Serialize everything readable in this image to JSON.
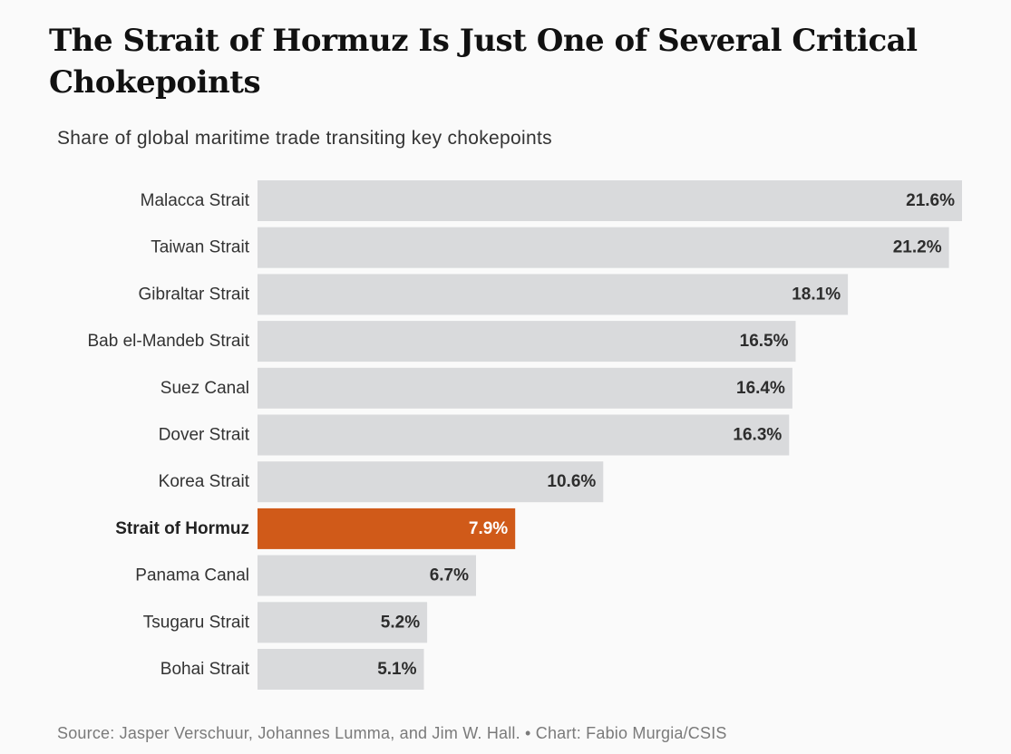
{
  "title": "The Strait of Hormuz Is Just One of Several Critical Chokepoints",
  "subtitle": "Share of global maritime trade transiting key chokepoints",
  "source": "Source: Jasper Verschuur, Johannes Lumma, and Jim W. Hall. • Chart: Fabio Murgia/CSIS",
  "colors": {
    "bar": "#d9dadc",
    "highlight": "#d05a19",
    "background": "#fafafa"
  },
  "chart_data": {
    "type": "bar",
    "orientation": "horizontal",
    "title": "The Strait of Hormuz Is Just One of Several Critical Chokepoints",
    "subtitle": "Share of global maritime trade transiting key chokepoints",
    "xlabel": "",
    "ylabel": "",
    "xlim": [
      0,
      21.6
    ],
    "grid": false,
    "legend": "none",
    "unit": "%",
    "highlight": "Strait of Hormuz",
    "categories": [
      "Malacca Strait",
      "Taiwan Strait",
      "Gibraltar Strait",
      "Bab el-Mandeb Strait",
      "Suez Canal",
      "Dover Strait",
      "Korea Strait",
      "Strait of Hormuz",
      "Panama Canal",
      "Tsugaru Strait",
      "Bohai Strait"
    ],
    "values": [
      21.6,
      21.2,
      18.1,
      16.5,
      16.4,
      16.3,
      10.6,
      7.9,
      6.7,
      5.2,
      5.1
    ],
    "value_labels": [
      "21.6%",
      "21.2%",
      "18.1%",
      "16.5%",
      "16.4%",
      "16.3%",
      "10.6%",
      "7.9%",
      "6.7%",
      "5.2%",
      "5.1%"
    ]
  }
}
